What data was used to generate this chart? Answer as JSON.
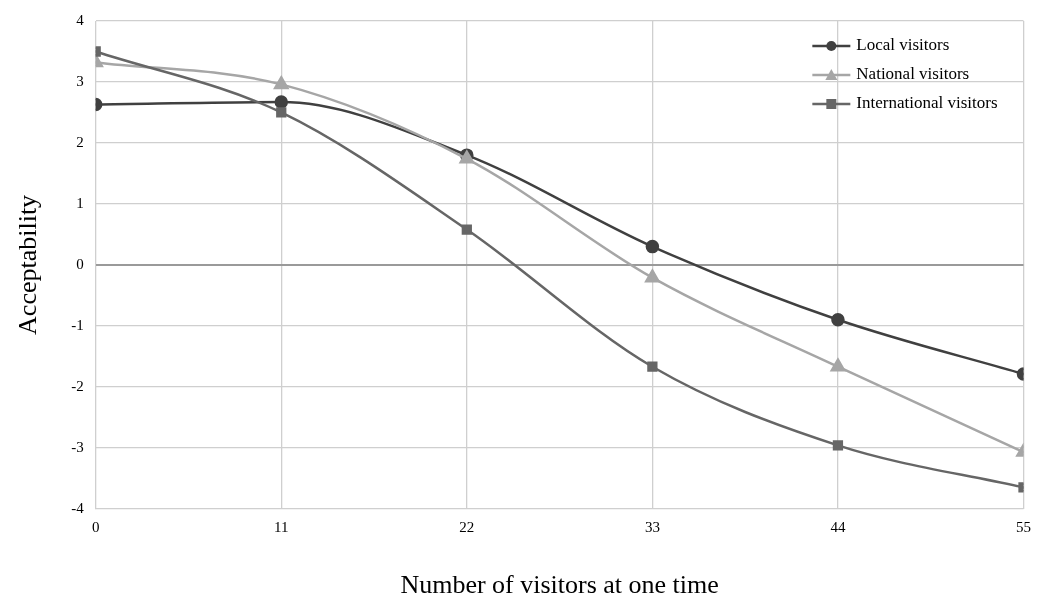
{
  "chart_data": {
    "type": "line",
    "xlabel": "Number of visitors at one time",
    "ylabel": "Acceptability",
    "x": [
      0,
      11,
      22,
      33,
      44,
      55
    ],
    "series": [
      {
        "name": "Local visitors",
        "color": "#404040",
        "marker": "circle",
        "values": [
          2.63,
          2.67,
          1.8,
          0.3,
          -0.9,
          -1.79
        ]
      },
      {
        "name": "National visitors",
        "color": "#a6a6a6",
        "marker": "triangle",
        "values": [
          3.32,
          2.96,
          1.74,
          -0.21,
          -1.67,
          -3.07
        ]
      },
      {
        "name": "International visitors",
        "color": "#666666",
        "marker": "square",
        "values": [
          3.5,
          2.5,
          0.58,
          -1.67,
          -2.96,
          -3.65
        ]
      }
    ],
    "xlim": [
      0,
      55
    ],
    "xticks": [
      0,
      11,
      22,
      33,
      44,
      55
    ],
    "ylim": [
      -4,
      4
    ],
    "yticks": [
      -4,
      -3,
      -2,
      -1,
      0,
      1,
      2,
      3,
      4
    ],
    "grid": true,
    "legend": "top right",
    "line_style": "solid"
  }
}
